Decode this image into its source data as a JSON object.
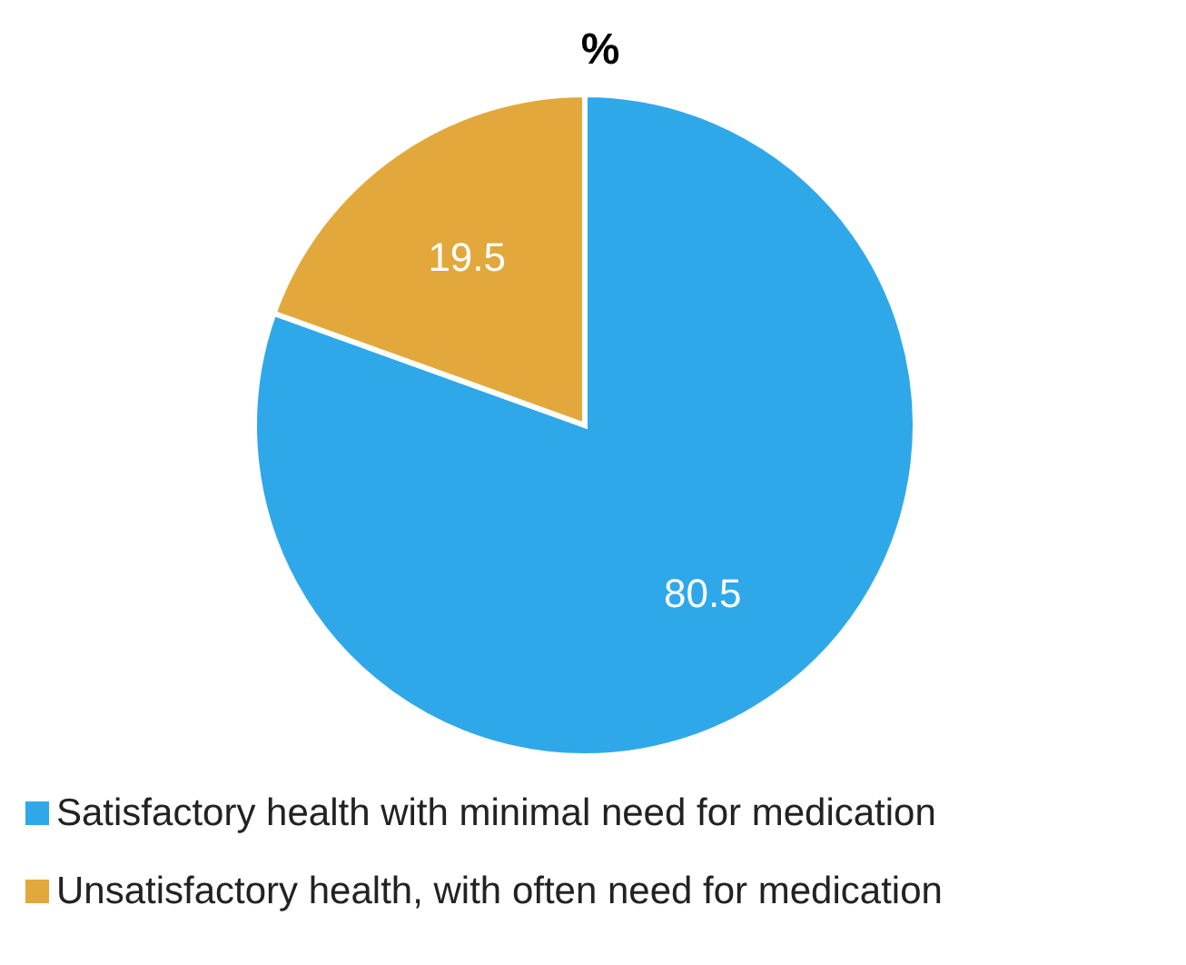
{
  "chart_data": {
    "type": "pie",
    "title": "%",
    "categories": [
      "Satisfactory health with minimal need for medication",
      "Unsatisfactory health, with often need for medication"
    ],
    "values": [
      80.5,
      19.5
    ],
    "colors": [
      "#2fa8ea",
      "#e2a83b"
    ],
    "data_labels": true,
    "legend": "bottom"
  }
}
